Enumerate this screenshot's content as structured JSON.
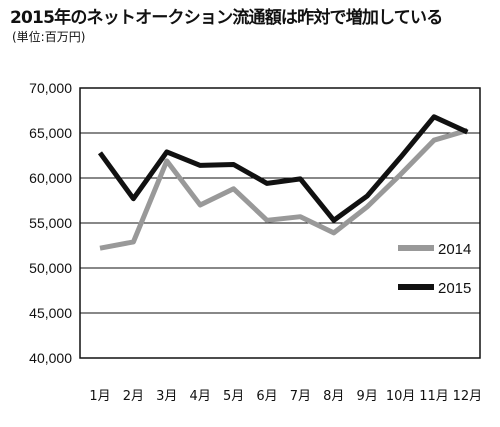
{
  "chart_data": {
    "type": "line",
    "title": "2015年のネットオークション流通額は昨対で増加している",
    "subtitle": "(単位:百万円)",
    "categories": [
      "1月",
      "2月",
      "3月",
      "4月",
      "5月",
      "6月",
      "7月",
      "8月",
      "9月",
      "10月",
      "11月",
      "12月"
    ],
    "series": [
      {
        "name": "2014",
        "color": "#999999",
        "values": [
          52200,
          52900,
          61900,
          57000,
          58800,
          55300,
          55700,
          53900,
          56800,
          60400,
          64200,
          65300
        ]
      },
      {
        "name": "2015",
        "color": "#111111",
        "values": [
          62800,
          57700,
          62900,
          61400,
          61500,
          59400,
          59900,
          55300,
          58000,
          62300,
          66800,
          65100
        ]
      }
    ],
    "ylim": [
      40000,
      70000
    ],
    "yticks": [
      40000,
      45000,
      50000,
      55000,
      60000,
      65000,
      70000
    ],
    "ytick_labels": [
      "40,000",
      "45,000",
      "50,000",
      "55,000",
      "60,000",
      "65,000",
      "70,000"
    ],
    "grid": true,
    "legend_position": "right"
  }
}
